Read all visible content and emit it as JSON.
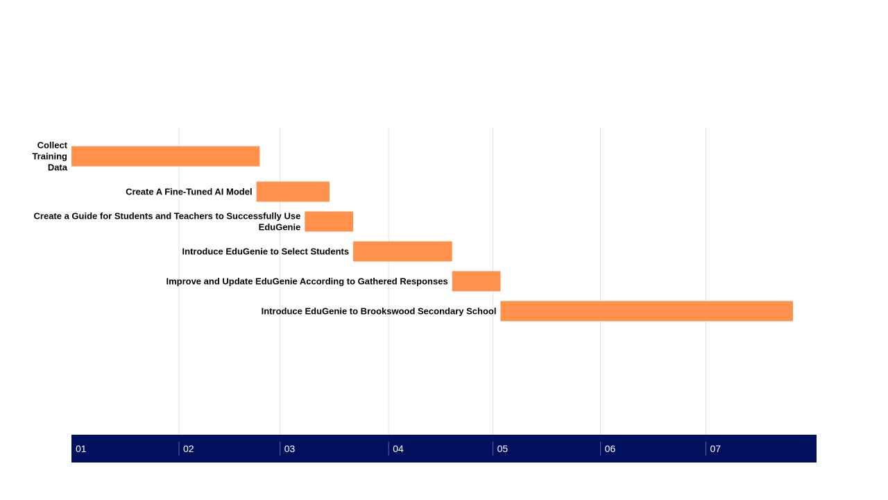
{
  "chart_data": {
    "type": "gantt",
    "title": "",
    "xlabel": "",
    "ylabel": "",
    "x_ticks": [
      "01",
      "02",
      "03",
      "04",
      "05",
      "06",
      "07"
    ],
    "x_tick_positions": [
      1,
      2,
      2.94,
      3.95,
      4.92,
      5.92,
      6.9
    ],
    "xlim": [
      1,
      7.9
    ],
    "grid": true,
    "colors": {
      "bar": "#FF914D",
      "axis_band": "#00105C",
      "gridline": "#E0E0E0"
    },
    "tasks": [
      {
        "label_lines": [
          "Collect",
          "Training",
          "Data"
        ],
        "start": 1.0,
        "end": 2.75
      },
      {
        "label_lines": [
          "Create A Fine-Tuned AI Model"
        ],
        "start": 2.72,
        "end": 3.4
      },
      {
        "label_lines": [
          "Create a Guide for  Students  and Teachers to  Successfully  Use",
          "EduGenie"
        ],
        "start": 3.17,
        "end": 3.62
      },
      {
        "label_lines": [
          "Introduce EduGenie to  Select Students"
        ],
        "start": 3.62,
        "end": 4.54
      },
      {
        "label_lines": [
          "Improve and Update EduGenie According  to Gathered Responses"
        ],
        "start": 4.54,
        "end": 4.99
      },
      {
        "label_lines": [
          "Introduce EduGenie to Brookswood  Secondary School"
        ],
        "start": 4.99,
        "end": 7.71
      }
    ]
  }
}
